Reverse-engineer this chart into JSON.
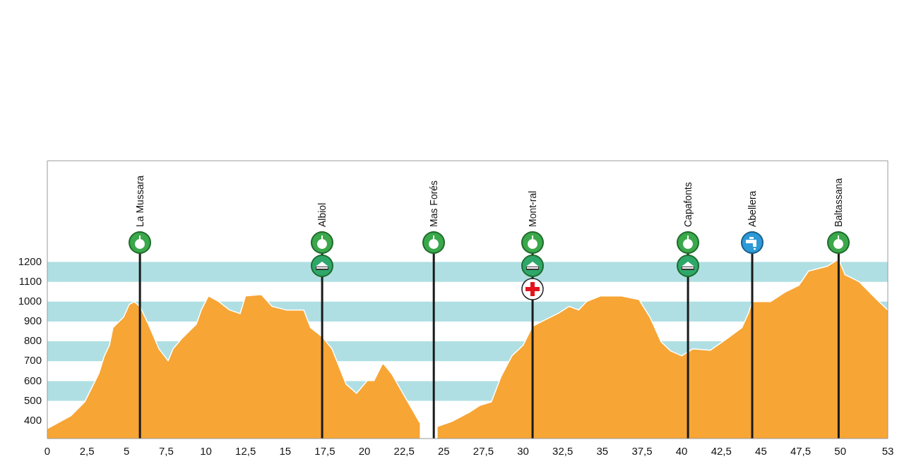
{
  "chart_data": {
    "type": "area",
    "legend": false,
    "grid": false,
    "marker": "none",
    "x": [
      0,
      1.47,
      2.36,
      3.25,
      3.6,
      3.92,
      4.14,
      4.81,
      5.17,
      5.48,
      5.84,
      6.37,
      7.04,
      7.62,
      7.93,
      8.5,
      8.95,
      9.4,
      9.71,
      10.16,
      10.82,
      11.49,
      12.16,
      12.5,
      13.5,
      14.17,
      15.06,
      16.17,
      16.6,
      17.33,
      17.95,
      18.84,
      19.5,
      20.18,
      20.6,
      21.16,
      21.7,
      22.6,
      23.5,
      23.96,
      24.37,
      24.6,
      25.5,
      26.6,
      27.3,
      28,
      28.6,
      29.3,
      30,
      30.6,
      31.3,
      32.2,
      32.9,
      33.5,
      34,
      34.9,
      36.2,
      37.3,
      38,
      38.7,
      39.3,
      40,
      40.7,
      41.8,
      42.9,
      43.8,
      44.2,
      44.45,
      45.6,
      46.5,
      47.4,
      48,
      49.2,
      49.9,
      50.3,
      51.2,
      52.3,
      53
    ],
    "series": [
      {
        "color": "#f7a535",
        "values": [
          360,
          424,
          495,
          638,
          727,
          780,
          869,
          922,
          986,
          1000,
          976,
          887,
          762,
          702,
          762,
          816,
          851,
          887,
          958,
          1029,
          1000,
          958,
          940,
          1029,
          1036,
          976,
          958,
          958,
          869,
          823,
          762,
          584,
          538,
          602,
          602,
          691,
          638,
          513,
          389,
          null,
          null,
          371,
          396,
          442,
          478,
          495,
          620,
          727,
          780,
          876,
          905,
          940,
          976,
          958,
          1000,
          1029,
          1029,
          1011,
          922,
          798,
          752,
          727,
          762,
          755,
          816,
          869,
          940,
          1000,
          1000,
          1047,
          1083,
          1154,
          1179,
          1214,
          1136,
          1100,
          1011,
          958
        ]
      }
    ],
    "xlim": [
      0,
      53
    ],
    "ylim": [
      310,
      1710
    ],
    "xticks": [
      0,
      {
        "value": 2.5,
        "label": "2,5"
      },
      5,
      {
        "value": 7.5,
        "label": "7,5"
      },
      10,
      {
        "value": 12.5,
        "label": "12,5"
      },
      15,
      {
        "value": 17.5,
        "label": "17,5"
      },
      20,
      {
        "value": 22.5,
        "label": "22,5"
      },
      25,
      {
        "value": 27.5,
        "label": "27,5"
      },
      30,
      {
        "value": 32.5,
        "label": "32,5"
      },
      35,
      {
        "value": 37.5,
        "label": "37,5"
      },
      40,
      {
        "value": 42.5,
        "label": "42,5"
      },
      45,
      {
        "value": 47.5,
        "label": "47,5"
      },
      50,
      53
    ],
    "yticks": [
      400,
      500,
      600,
      700,
      800,
      900,
      1000,
      1100,
      1200
    ],
    "bands": [
      {
        "axis": "y",
        "from": 1100,
        "to": 1200,
        "color": "#afdfe3"
      },
      {
        "axis": "y",
        "from": 900,
        "to": 1000,
        "color": "#afdfe3"
      },
      {
        "axis": "y",
        "from": 700,
        "to": 800,
        "color": "#afdfe3"
      },
      {
        "axis": "y",
        "from": 500,
        "to": 600,
        "color": "#afdfe3"
      }
    ],
    "ref_lines": [
      {
        "axis": "x",
        "value": 5.84,
        "label": "La Mussara",
        "color": "#1a1a1a"
      },
      {
        "axis": "x",
        "value": 17.33,
        "label": "Albiol",
        "color": "#1a1a1a"
      },
      {
        "axis": "x",
        "value": 24.37,
        "label": "Mas Forés",
        "color": "#1a1a1a"
      },
      {
        "axis": "x",
        "value": 30.6,
        "label": "Mont-ral",
        "color": "#1a1a1a"
      },
      {
        "axis": "x",
        "value": 40.4,
        "label": "Capafonts",
        "color": "#1a1a1a"
      },
      {
        "axis": "x",
        "value": 44.45,
        "label": "Abellera",
        "color": "#1a1a1a"
      },
      {
        "axis": "x",
        "value": 49.9,
        "label": "Baltassana",
        "color": "#1a1a1a"
      }
    ]
  }
}
